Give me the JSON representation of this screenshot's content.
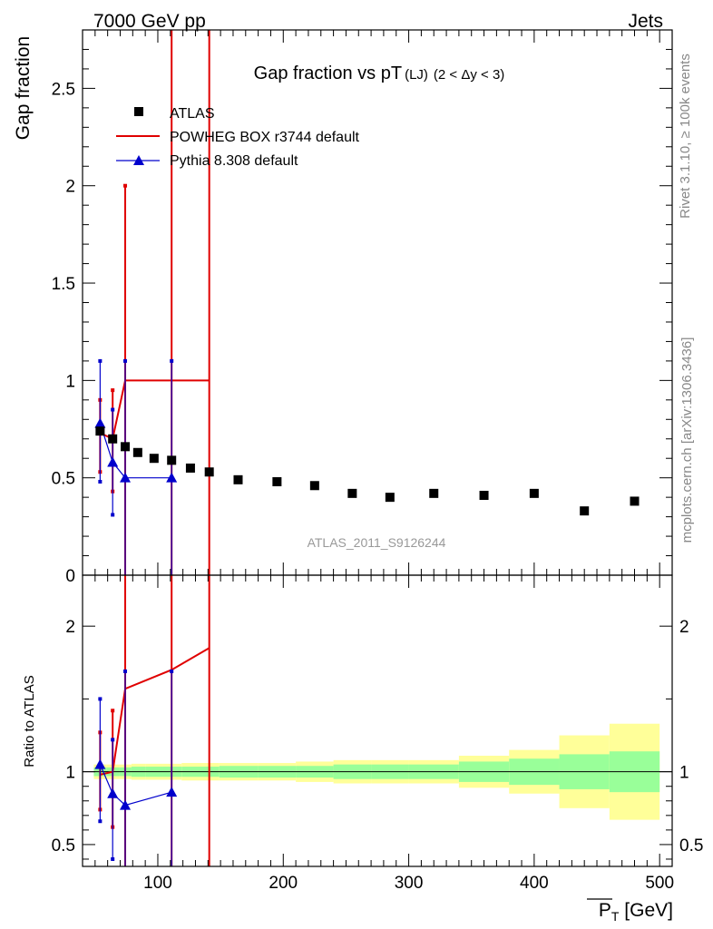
{
  "header": {
    "left": "7000 GeV pp",
    "right": "Jets"
  },
  "side_labels": {
    "rivet": "Rivet 3.1.10, ≥ 100k events",
    "mcplots": "mcplots.cern.ch [arXiv:1306.3436]"
  },
  "chart_data": [
    {
      "type": "scatter",
      "title_main": "Gap fraction vs pT",
      "title_sub": "(LJ)",
      "title_cut": "(2 < Δy < 3)",
      "ylabel": "Gap fraction",
      "xlabel": "",
      "xlim": [
        40,
        510
      ],
      "ylim": [
        0,
        2.8
      ],
      "y_ticks": [
        "0",
        "0.5",
        "1",
        "1.5",
        "2",
        "2.5"
      ],
      "y_tick_values": [
        0,
        0.5,
        1,
        1.5,
        2,
        2.5
      ],
      "watermark": "ATLAS_2011_S9126244",
      "legend_position": "top-left",
      "series": [
        {
          "name": "ATLAS",
          "color": "#000000",
          "marker": "square",
          "x": [
            54,
            64,
            74,
            84,
            97,
            111,
            126,
            141,
            164,
            195,
            225,
            255,
            285,
            320,
            360,
            400,
            440,
            480
          ],
          "y": [
            0.74,
            0.7,
            0.66,
            0.63,
            0.6,
            0.59,
            0.55,
            0.53,
            0.49,
            0.48,
            0.46,
            0.42,
            0.4,
            0.42,
            0.41,
            0.42,
            0.33,
            0.38
          ]
        },
        {
          "name": "POWHEG BOX r3744 default",
          "color": "#e00000",
          "marker": "line",
          "x": [
            54,
            64,
            74,
            111,
            141
          ],
          "y": [
            0.73,
            0.7,
            1.0,
            1.0,
            1.0
          ],
          "err_low": [
            0.53,
            0.43,
            0.0,
            0.0,
            0.0
          ],
          "err_high": [
            0.9,
            0.95,
            2.0,
            2.8,
            2.8
          ]
        },
        {
          "name": "Pythia 8.308 default",
          "color": "#0000cc",
          "marker": "triangle",
          "x": [
            54,
            64,
            74,
            111
          ],
          "y": [
            0.78,
            0.58,
            0.5,
            0.5
          ],
          "err_low": [
            0.48,
            0.31,
            0.0,
            0.0
          ],
          "err_high": [
            1.1,
            0.85,
            1.1,
            1.1
          ]
        }
      ]
    },
    {
      "type": "line",
      "ylabel": "Ratio to ATLAS",
      "xlabel": "P_T [GeV]",
      "xlabel_main": "P",
      "xlabel_sub": "T",
      "xlabel_unit": " [GeV]",
      "xlim": [
        40,
        510
      ],
      "ylim": [
        0.35,
        2.35
      ],
      "y_ticks": [
        "0.5",
        "1",
        "2"
      ],
      "y_tick_values": [
        0.5,
        1,
        2
      ],
      "x_ticks": [
        "100",
        "200",
        "300",
        "400",
        "500"
      ],
      "x_tick_values": [
        100,
        200,
        300,
        400,
        500
      ],
      "bands": {
        "edges": [
          49,
          59,
          69,
          79,
          90,
          104,
          119,
          134,
          149,
          180,
          210,
          240,
          270,
          300,
          340,
          380,
          420,
          460,
          500
        ],
        "green_half": [
          0.03,
          0.03,
          0.03,
          0.035,
          0.035,
          0.035,
          0.035,
          0.035,
          0.04,
          0.04,
          0.04,
          0.05,
          0.05,
          0.05,
          0.07,
          0.09,
          0.12,
          0.14
        ],
        "yellow_half": [
          0.05,
          0.05,
          0.05,
          0.055,
          0.055,
          0.055,
          0.06,
          0.06,
          0.06,
          0.06,
          0.07,
          0.08,
          0.08,
          0.08,
          0.11,
          0.15,
          0.25,
          0.33
        ],
        "green_color": "#99ff99",
        "yellow_color": "#ffff99"
      },
      "series": [
        {
          "name": "POWHEG BOX r3744 default",
          "color": "#e00000",
          "x": [
            54,
            64,
            74,
            111,
            141
          ],
          "y": [
            0.98,
            1.0,
            1.57,
            1.7,
            1.85
          ],
          "err_low": [
            0.74,
            0.62,
            0.0,
            0.0,
            0.0
          ],
          "err_high": [
            1.27,
            1.42,
            2.35,
            2.35,
            2.35
          ]
        },
        {
          "name": "Pythia 8.308 default",
          "color": "#0000cc",
          "x": [
            54,
            64,
            74,
            111
          ],
          "y": [
            1.05,
            0.85,
            0.77,
            0.86
          ],
          "err_low": [
            0.66,
            0.4,
            0.0,
            0.0
          ],
          "err_high": [
            1.5,
            1.22,
            1.69,
            1.69
          ]
        }
      ]
    }
  ]
}
